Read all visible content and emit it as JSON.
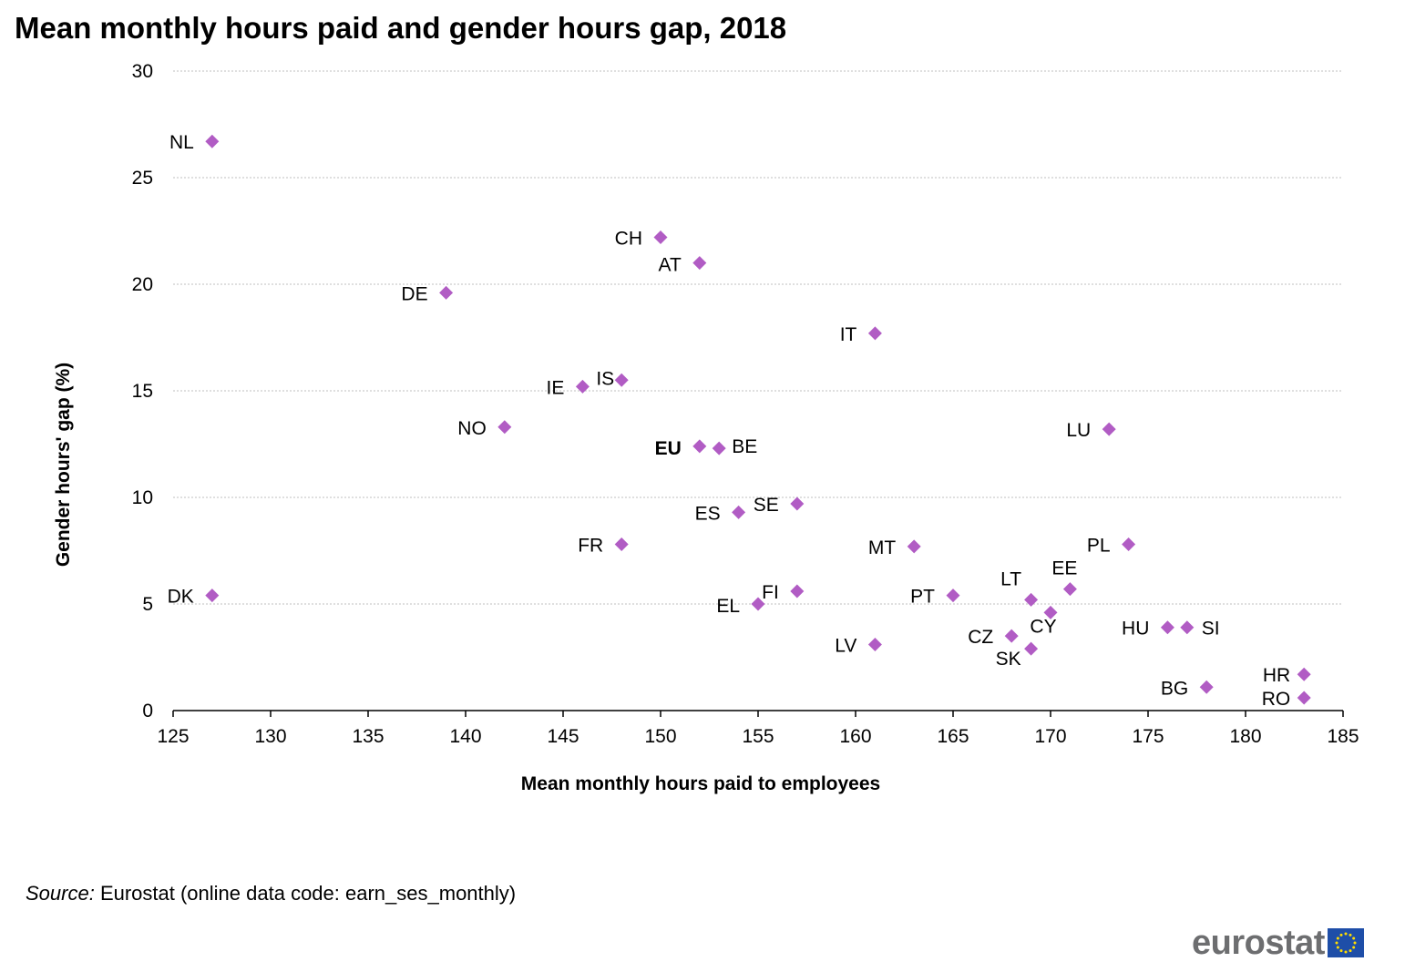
{
  "title": "Mean monthly hours paid and gender hours gap, 2018",
  "source": {
    "prefix": "Source:",
    "text": " Eurostat (online data code: earn_ses_monthly)"
  },
  "logo": {
    "text": "eurostat"
  },
  "colors": {
    "marker": "#b15cc4",
    "grid": "#bfbfbf",
    "flag_blue": "#1e4ea8",
    "flag_star": "#ffdd00",
    "logo_gray": "#6d6e70"
  },
  "chart_data": {
    "type": "scatter",
    "title": "Mean monthly hours paid and gender hours gap, 2018",
    "xlabel": "Mean monthly hours paid to employees",
    "ylabel": "Gender hours' gap (%)",
    "xlim": [
      125,
      185
    ],
    "ylim": [
      0,
      30
    ],
    "xticks": [
      125,
      130,
      135,
      140,
      145,
      150,
      155,
      160,
      165,
      170,
      175,
      180,
      185
    ],
    "yticks": [
      0,
      5,
      10,
      15,
      20,
      25,
      30
    ],
    "grid": "horizontal dashed",
    "points": [
      {
        "label": "NL",
        "x": 127,
        "y": 26.7
      },
      {
        "label": "CH",
        "x": 150,
        "y": 22.2
      },
      {
        "label": "AT",
        "x": 152,
        "y": 21.0
      },
      {
        "label": "DE",
        "x": 139,
        "y": 19.6
      },
      {
        "label": "IT",
        "x": 161,
        "y": 17.7
      },
      {
        "label": "IS",
        "x": 148,
        "y": 15.5
      },
      {
        "label": "IE",
        "x": 146,
        "y": 15.2
      },
      {
        "label": "NO",
        "x": 142,
        "y": 13.3
      },
      {
        "label": "LU",
        "x": 173,
        "y": 13.2
      },
      {
        "label": "EU",
        "x": 152,
        "y": 12.4,
        "bold": true
      },
      {
        "label": "BE",
        "x": 153,
        "y": 12.3
      },
      {
        "label": "SE",
        "x": 157,
        "y": 9.7
      },
      {
        "label": "ES",
        "x": 154,
        "y": 9.3
      },
      {
        "label": "FR",
        "x": 148,
        "y": 7.8
      },
      {
        "label": "PL",
        "x": 174,
        "y": 7.8
      },
      {
        "label": "MT",
        "x": 163,
        "y": 7.7
      },
      {
        "label": "EE",
        "x": 171,
        "y": 5.7
      },
      {
        "label": "FI",
        "x": 157,
        "y": 5.6
      },
      {
        "label": "DK",
        "x": 127,
        "y": 5.4
      },
      {
        "label": "PT",
        "x": 165,
        "y": 5.4
      },
      {
        "label": "LT",
        "x": 169,
        "y": 5.2
      },
      {
        "label": "EL",
        "x": 155,
        "y": 5.0
      },
      {
        "label": "CY",
        "x": 170,
        "y": 4.6
      },
      {
        "label": "HU",
        "x": 176,
        "y": 3.9
      },
      {
        "label": "SI",
        "x": 177,
        "y": 3.9
      },
      {
        "label": "CZ",
        "x": 168,
        "y": 3.5
      },
      {
        "label": "LV",
        "x": 161,
        "y": 3.1
      },
      {
        "label": "SK",
        "x": 169,
        "y": 2.9
      },
      {
        "label": "HR",
        "x": 183,
        "y": 1.7
      },
      {
        "label": "BG",
        "x": 178,
        "y": 1.1
      },
      {
        "label": "RO",
        "x": 183,
        "y": 0.6
      }
    ]
  }
}
